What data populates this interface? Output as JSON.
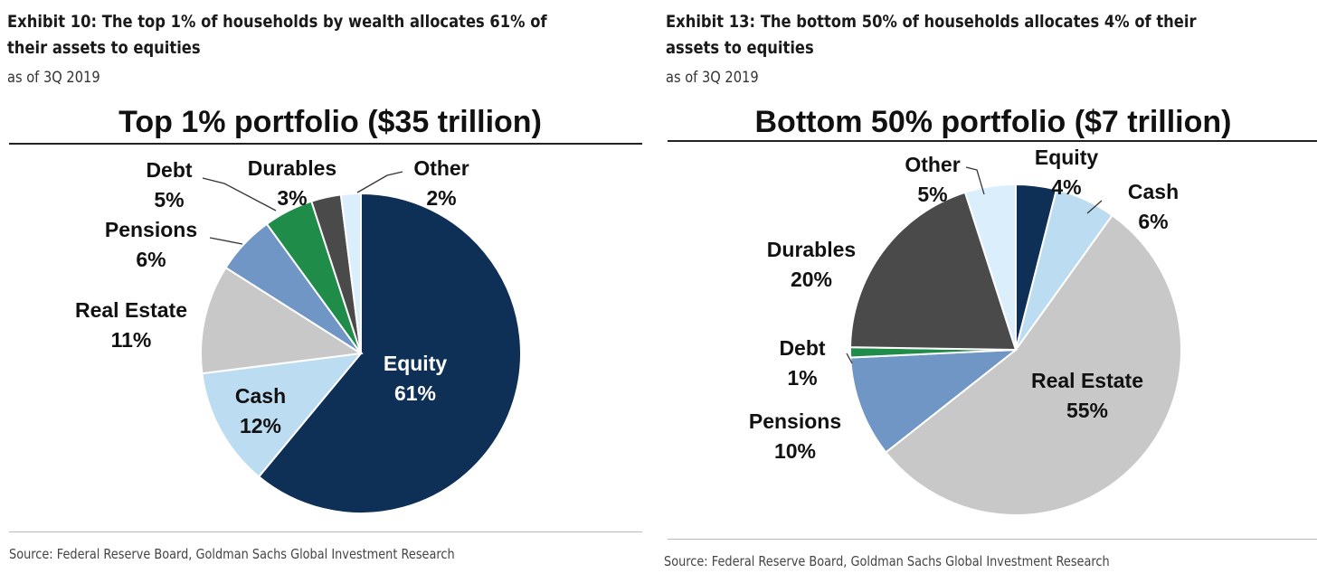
{
  "left": {
    "exhibit_title": "Exhibit 10: The top 1% of households by wealth allocates 61% of their assets to equities",
    "as_of": "as of 3Q 2019",
    "source": "Source: Federal Reserve Board, Goldman Sachs Global Investment Research"
  },
  "right": {
    "exhibit_title": "Exhibit 13: The bottom 50% of households allocates 4% of their assets to equities",
    "as_of": "as of 3Q 2019",
    "source": "Source: Federal Reserve Board, Goldman Sachs Global Investment Research"
  },
  "colors": {
    "Equity": "#0e2f56",
    "Cash": "#bcdcf2",
    "Real Estate": "#c8c8c8",
    "Pensions": "#7096c6",
    "Debt": "#1f8c4a",
    "Durables": "#4a4a4a",
    "Other": "#daeefb"
  },
  "chart_data": [
    {
      "type": "pie",
      "title": "Top 1% portfolio ($35 trillion)",
      "slices": [
        {
          "label": "Equity",
          "value": 61,
          "value_label": "61%"
        },
        {
          "label": "Cash",
          "value": 12,
          "value_label": "12%"
        },
        {
          "label": "Real Estate",
          "value": 11,
          "value_label": "11%"
        },
        {
          "label": "Pensions",
          "value": 6,
          "value_label": "6%"
        },
        {
          "label": "Debt",
          "value": 5,
          "value_label": "5%"
        },
        {
          "label": "Durables",
          "value": 3,
          "value_label": "3%"
        },
        {
          "label": "Other",
          "value": 2,
          "value_label": "2%"
        }
      ]
    },
    {
      "type": "pie",
      "title": "Bottom 50% portfolio ($7 trillion)",
      "slices": [
        {
          "label": "Equity",
          "value": 4,
          "value_label": "4%"
        },
        {
          "label": "Cash",
          "value": 6,
          "value_label": "6%"
        },
        {
          "label": "Real Estate",
          "value": 55,
          "value_label": "55%"
        },
        {
          "label": "Pensions",
          "value": 10,
          "value_label": "10%"
        },
        {
          "label": "Debt",
          "value": 1,
          "value_label": "1%"
        },
        {
          "label": "Durables",
          "value": 20,
          "value_label": "20%"
        },
        {
          "label": "Other",
          "value": 5,
          "value_label": "5%"
        }
      ]
    }
  ]
}
